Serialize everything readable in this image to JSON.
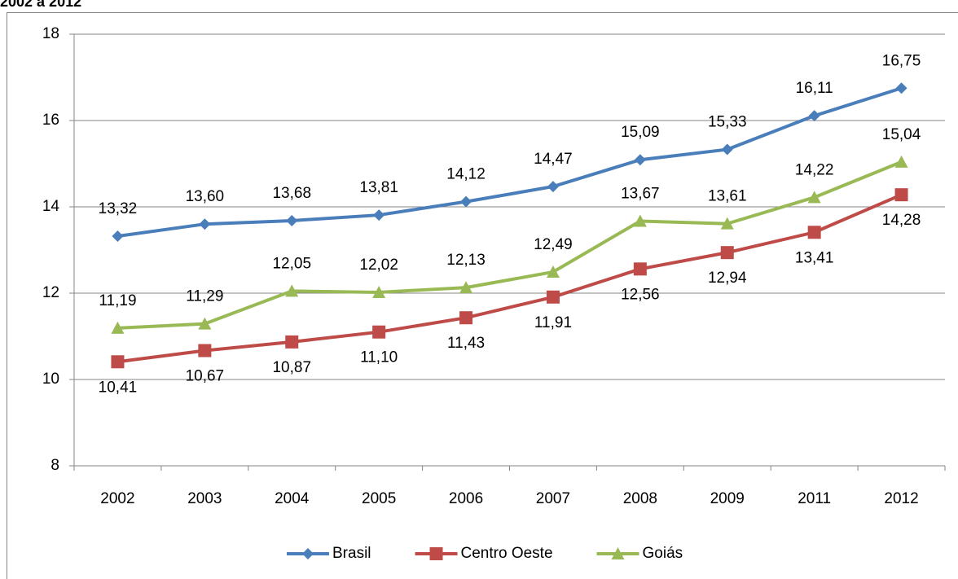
{
  "chart_data": {
    "type": "line",
    "title": "2002 a 2012",
    "categories": [
      "2002",
      "2003",
      "2004",
      "2005",
      "2006",
      "2007",
      "2008",
      "2009",
      "2011",
      "2012"
    ],
    "series": [
      {
        "name": "Brasil",
        "color": "#4a7ebb",
        "marker": "diamond",
        "label_position": "above",
        "values": [
          13.32,
          13.6,
          13.68,
          13.81,
          14.12,
          14.47,
          15.09,
          15.33,
          16.11,
          16.75
        ],
        "value_labels": [
          "13,32",
          "13,60",
          "13,68",
          "13,81",
          "14,12",
          "14,47",
          "15,09",
          "15,33",
          "16,11",
          "16,75"
        ]
      },
      {
        "name": "Centro Oeste",
        "color": "#be4b48",
        "marker": "square",
        "label_position": "below",
        "values": [
          10.41,
          10.67,
          10.87,
          11.1,
          11.43,
          11.91,
          12.56,
          12.94,
          13.41,
          14.28
        ],
        "value_labels": [
          "10,41",
          "10,67",
          "10,87",
          "11,10",
          "11,43",
          "11,91",
          "12,56",
          "12,94",
          "13,41",
          "14,28"
        ]
      },
      {
        "name": "Goiás",
        "color": "#98b954",
        "marker": "triangle",
        "label_position": "above",
        "values": [
          11.19,
          11.29,
          12.05,
          12.02,
          12.13,
          12.49,
          13.67,
          13.61,
          14.22,
          15.04
        ],
        "value_labels": [
          "11,19",
          "11,29",
          "12,05",
          "12,02",
          "12,13",
          "12,49",
          "13,67",
          "13,61",
          "14,22",
          "15,04"
        ]
      }
    ],
    "ylim": [
      8,
      18
    ],
    "yticks": [
      8,
      10,
      12,
      14,
      16,
      18
    ],
    "grid": true,
    "legend": "bottom"
  }
}
